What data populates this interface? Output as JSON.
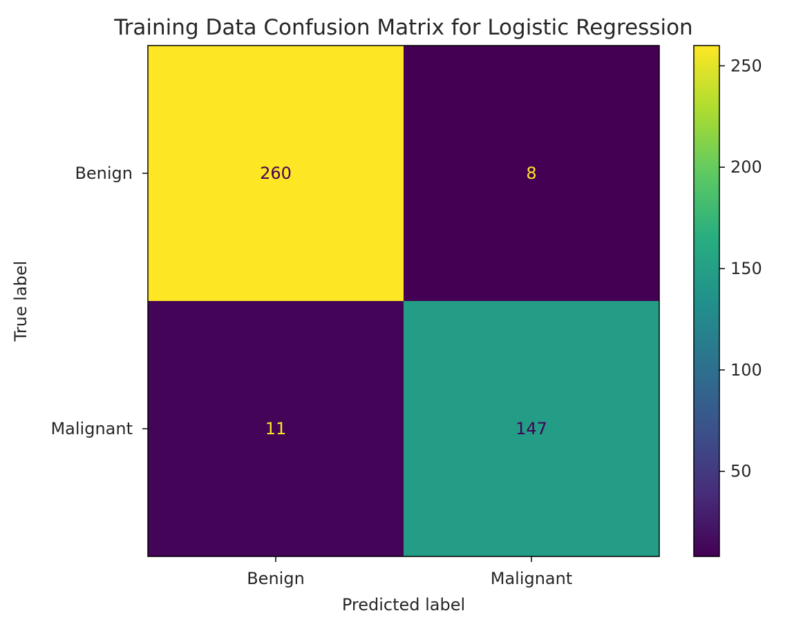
{
  "chart_data": {
    "type": "heatmap",
    "title": "Training Data Confusion Matrix for Logistic Regression",
    "xlabel": "Predicted label",
    "ylabel": "True label",
    "row_labels": [
      "Benign",
      "Malignant"
    ],
    "col_labels": [
      "Benign",
      "Malignant"
    ],
    "values": [
      [
        260,
        8
      ],
      [
        11,
        147
      ]
    ],
    "colormap": "viridis",
    "colorbar": {
      "range": [
        8,
        260
      ],
      "ticks": [
        50,
        100,
        150,
        200,
        250
      ],
      "tick_labels": [
        "50",
        "100",
        "150",
        "200",
        "250"
      ]
    },
    "grid": false
  }
}
